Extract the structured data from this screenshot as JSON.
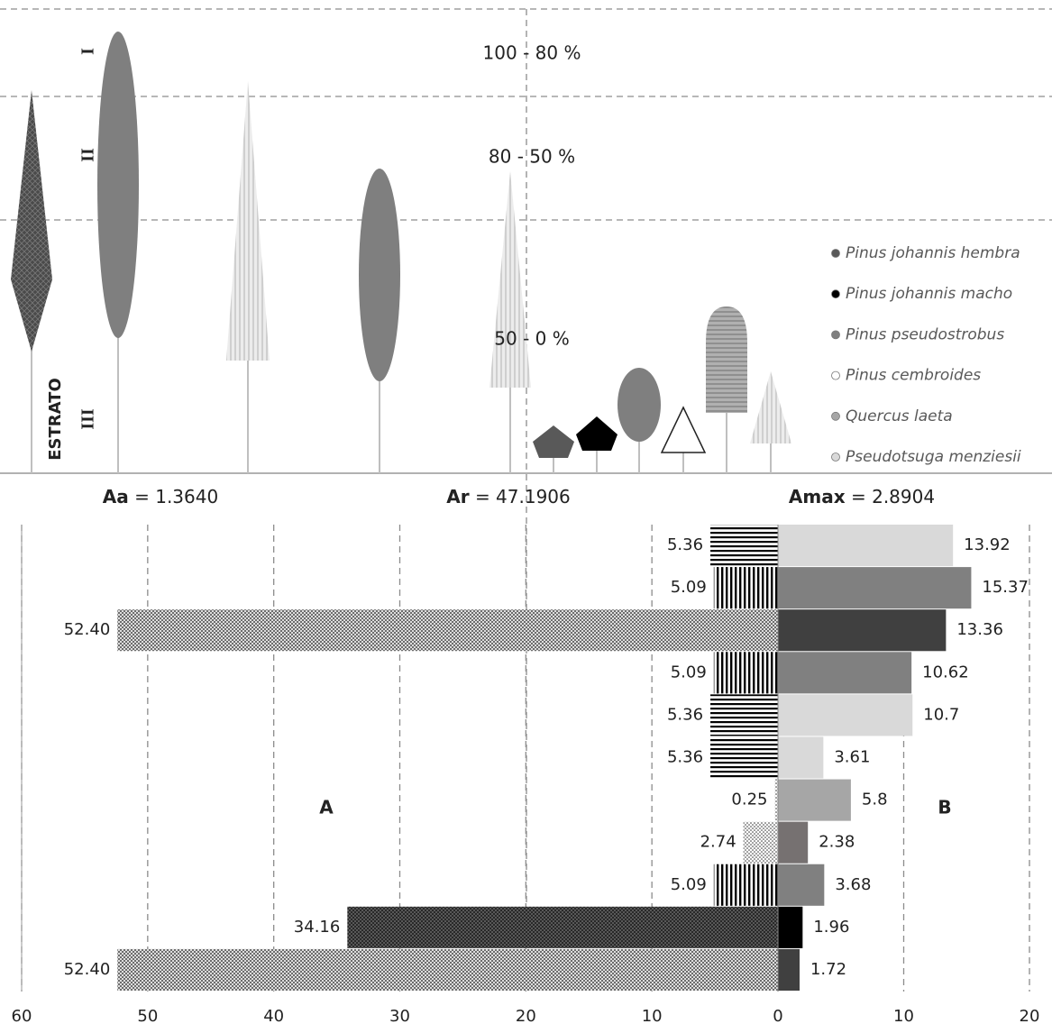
{
  "profile": {
    "strata": [
      {
        "range": "100 - 80 %",
        "numeral": "I"
      },
      {
        "range": "80 - 50 %",
        "numeral": "II"
      },
      {
        "range": "50 - 0 %",
        "numeral": "III"
      }
    ],
    "axis_label": "ESTRATO",
    "legend": [
      {
        "name": "Pinus johannis hembra",
        "color": "#595959"
      },
      {
        "name": "Pinus johannis macho",
        "color": "#000000"
      },
      {
        "name": "Pinus pseudostrobus",
        "color": "#7f7f7f"
      },
      {
        "name": "Pinus cembroides",
        "color": "#ffffff"
      },
      {
        "name": "Quercus laeta",
        "color": "#a6a6a6"
      },
      {
        "name": "Pseudotsuga menziesii",
        "color": "#d9d9d9"
      }
    ]
  },
  "chart_data": {
    "type": "butterfly",
    "indices": [
      {
        "name": "Aa",
        "text": "= 1.3640"
      },
      {
        "name": "Ar",
        "text": "= 47.1906"
      },
      {
        "name": "Amax",
        "text": "= 2.8904"
      }
    ],
    "a_xlim": [
      60,
      0
    ],
    "a_xticks": [
      60,
      50,
      40,
      30,
      20,
      10,
      0
    ],
    "b_xlim": [
      0,
      20
    ],
    "b_xticks": [
      10,
      20
    ],
    "grid": true,
    "series": [
      {
        "name": "A",
        "values": [
          5.36,
          5.09,
          52.4,
          5.09,
          5.36,
          5.36,
          0.25,
          2.74,
          5.09,
          34.16,
          52.4
        ],
        "value_labels": [
          "5.36",
          "5.09",
          "52.40",
          "5.09",
          "5.36",
          "5.36",
          "0.25",
          "2.74",
          "5.09",
          "34.16",
          "52.40"
        ],
        "patterns": [
          "hlines",
          "vlines",
          "cross",
          "vlines",
          "hlines",
          "hlines",
          "dots",
          "dots",
          "vlines",
          "dense",
          "cross"
        ]
      },
      {
        "name": "B",
        "values": [
          13.92,
          15.37,
          13.36,
          10.62,
          10.7,
          3.61,
          5.8,
          2.38,
          3.68,
          1.96,
          1.72
        ],
        "colors": [
          "#d9d9d9",
          "#808080",
          "#404040",
          "#808080",
          "#d9d9d9",
          "#d9d9d9",
          "#a6a6a6",
          "#767171",
          "#808080",
          "#000000",
          "#404040"
        ]
      }
    ]
  }
}
